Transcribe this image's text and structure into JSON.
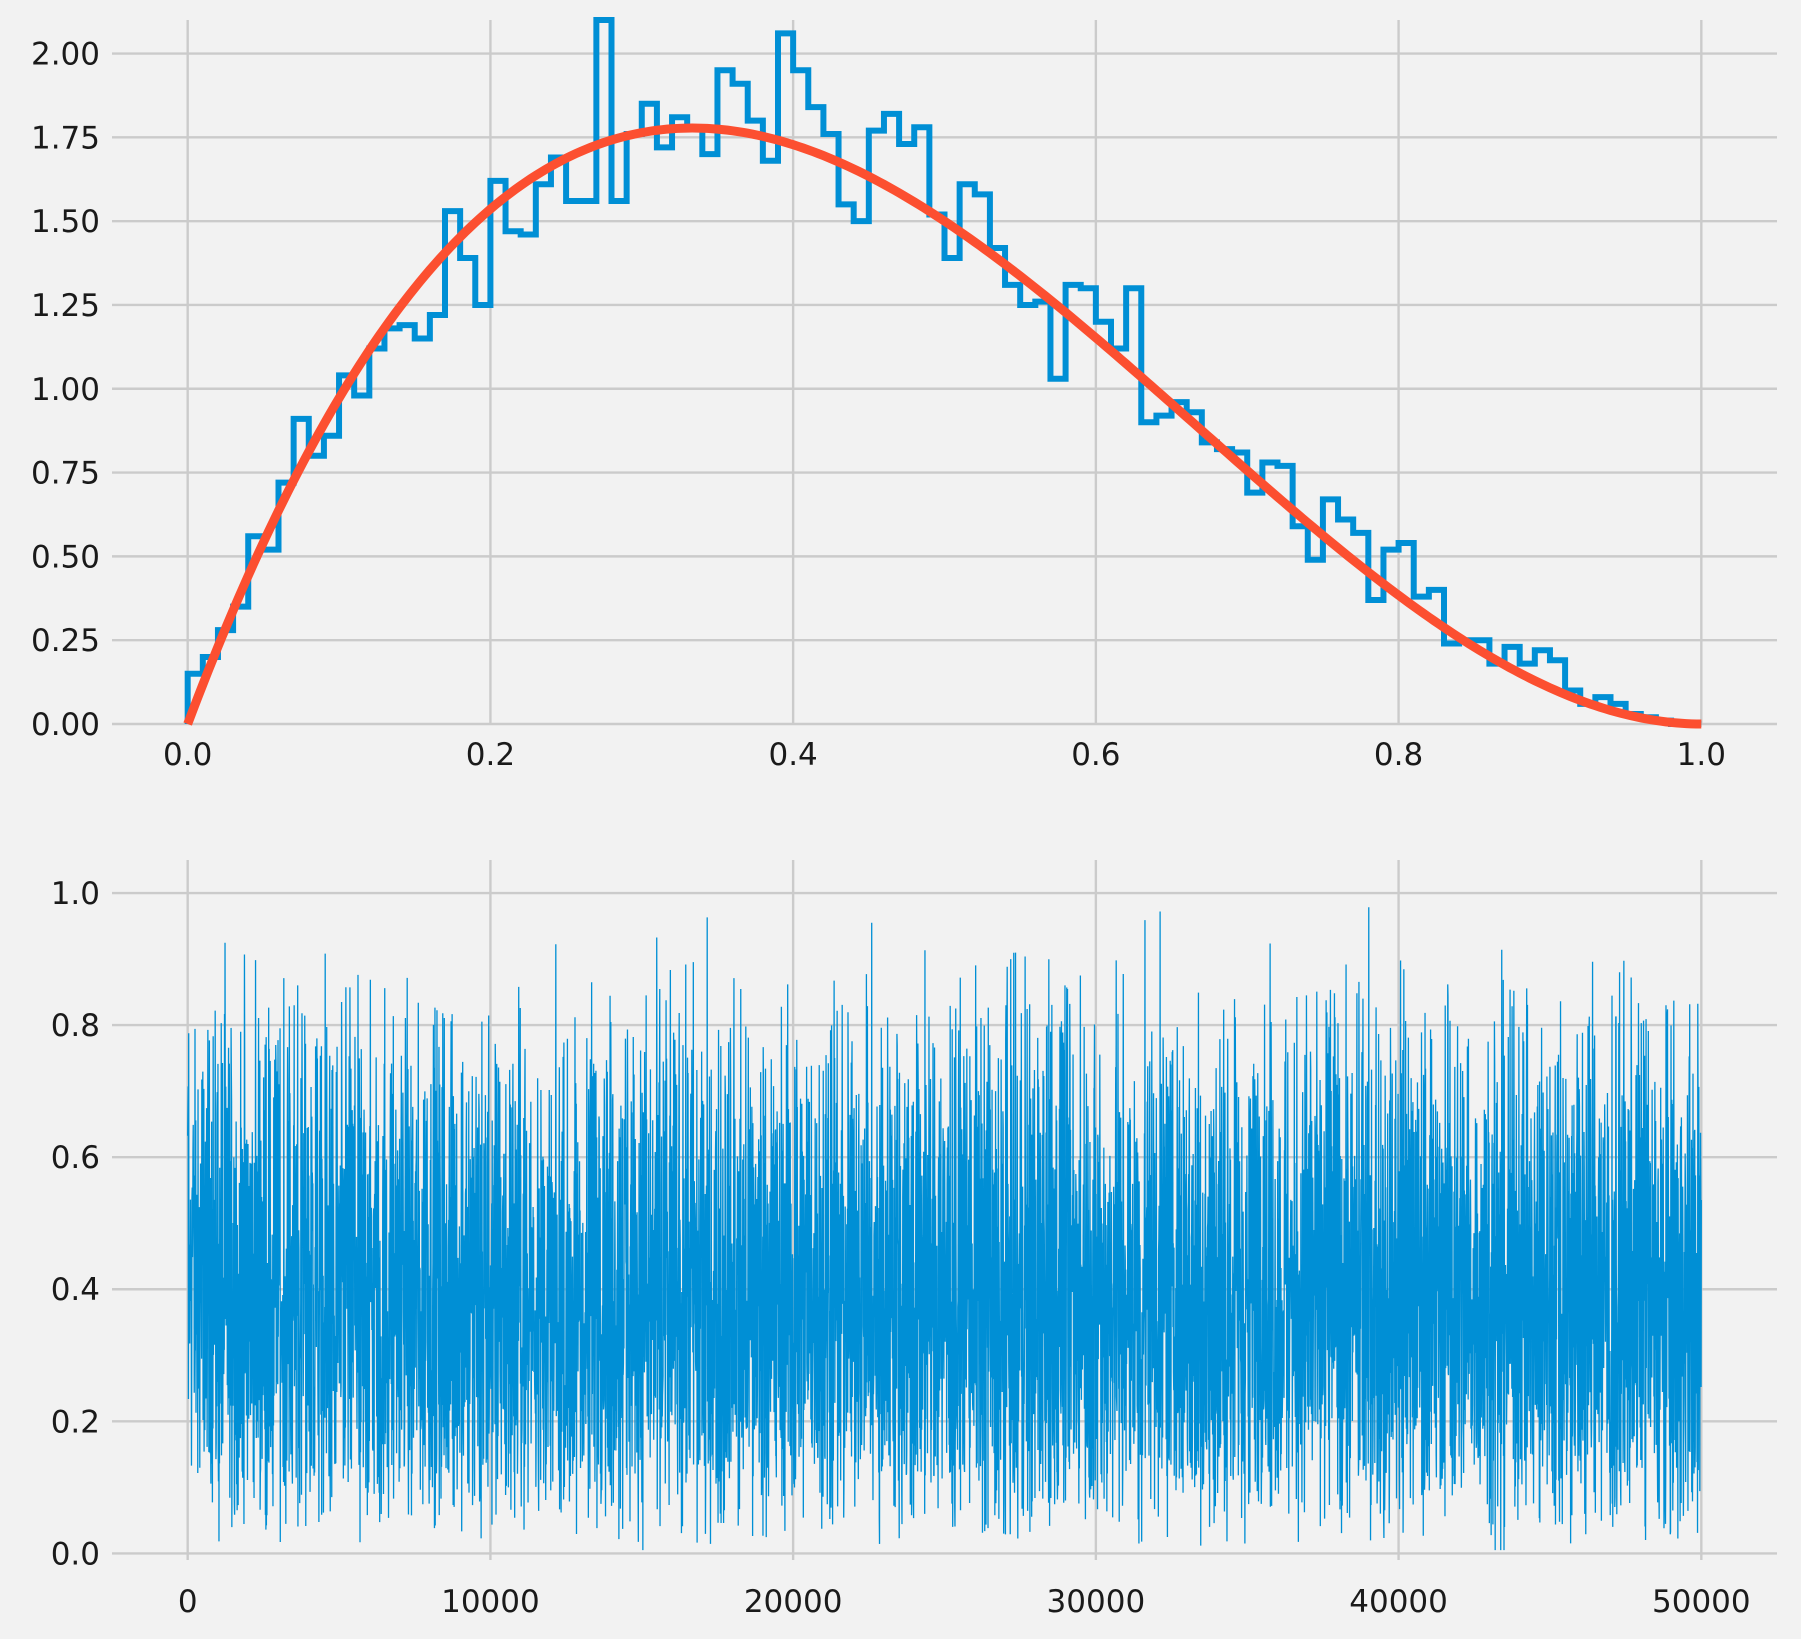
{
  "colors": {
    "background": "#f2f2f2",
    "grid": "#cbcbcb",
    "histogram": "#008fd5",
    "pdf_line": "#fc4f30",
    "trace": "#008fd5",
    "text": "#1a1a1a"
  },
  "chart_data": [
    {
      "type": "line",
      "title": "",
      "xlabel": "",
      "ylabel": "",
      "xlim": [
        -0.05,
        1.05
      ],
      "ylim": [
        0.0,
        2.1
      ],
      "grid": true,
      "x_ticks": [
        0.0,
        0.2,
        0.4,
        0.6,
        0.8,
        1.0
      ],
      "x_tick_labels": [
        "0.0",
        "0.2",
        "0.4",
        "0.6",
        "0.8",
        "1.0"
      ],
      "y_ticks": [
        0.0,
        0.25,
        0.5,
        0.75,
        1.0,
        1.25,
        1.5,
        1.75,
        2.0
      ],
      "y_tick_labels": [
        "0.00",
        "0.25",
        "0.50",
        "0.75",
        "1.00",
        "1.25",
        "1.50",
        "1.75",
        "2.00"
      ],
      "series": [
        {
          "kind": "step-histogram",
          "color": "#008fd5",
          "bin_start": 0.0,
          "bin_width": 0.01,
          "values": [
            0.15,
            0.2,
            0.28,
            0.35,
            0.56,
            0.52,
            0.72,
            0.91,
            0.8,
            0.86,
            1.04,
            0.98,
            1.12,
            1.18,
            1.19,
            1.15,
            1.22,
            1.53,
            1.39,
            1.25,
            1.62,
            1.47,
            1.46,
            1.61,
            1.69,
            1.56,
            1.56,
            2.1,
            1.56,
            1.76,
            1.85,
            1.72,
            1.81,
            1.78,
            1.7,
            1.95,
            1.91,
            1.8,
            1.68,
            2.06,
            1.95,
            1.84,
            1.76,
            1.55,
            1.5,
            1.77,
            1.82,
            1.73,
            1.78,
            1.52,
            1.39,
            1.61,
            1.58,
            1.42,
            1.31,
            1.25,
            1.26,
            1.03,
            1.31,
            1.3,
            1.2,
            1.12,
            1.3,
            0.9,
            0.92,
            0.96,
            0.93,
            0.84,
            0.82,
            0.81,
            0.69,
            0.78,
            0.77,
            0.59,
            0.49,
            0.67,
            0.61,
            0.57,
            0.37,
            0.52,
            0.54,
            0.38,
            0.4,
            0.24,
            0.25,
            0.25,
            0.18,
            0.23,
            0.18,
            0.22,
            0.19,
            0.1,
            0.06,
            0.08,
            0.06,
            0.03,
            0.02,
            0.01,
            0.0,
            0.0
          ]
        },
        {
          "kind": "pdf-curve",
          "color": "#fc4f30",
          "formula": "12 * x * (1 - x)^2",
          "x_range": [
            0.0,
            1.0
          ]
        }
      ]
    },
    {
      "type": "line",
      "title": "",
      "xlabel": "",
      "ylabel": "",
      "xlim": [
        -2500,
        52500
      ],
      "ylim": [
        -0.01,
        1.05
      ],
      "grid": true,
      "x_ticks": [
        0,
        10000,
        20000,
        30000,
        40000,
        50000
      ],
      "x_tick_labels": [
        "0",
        "10000",
        "20000",
        "30000",
        "40000",
        "50000"
      ],
      "y_ticks": [
        0.0,
        0.2,
        0.4,
        0.6,
        0.8,
        1.0
      ],
      "y_tick_labels": [
        "0.0",
        "0.2",
        "0.4",
        "0.6",
        "0.8",
        "1.0"
      ],
      "series": [
        {
          "kind": "trace",
          "color": "#008fd5",
          "n_samples": 50000,
          "value_range": [
            0.005,
            0.98
          ],
          "distribution": "Beta(2, 3)"
        }
      ]
    }
  ]
}
